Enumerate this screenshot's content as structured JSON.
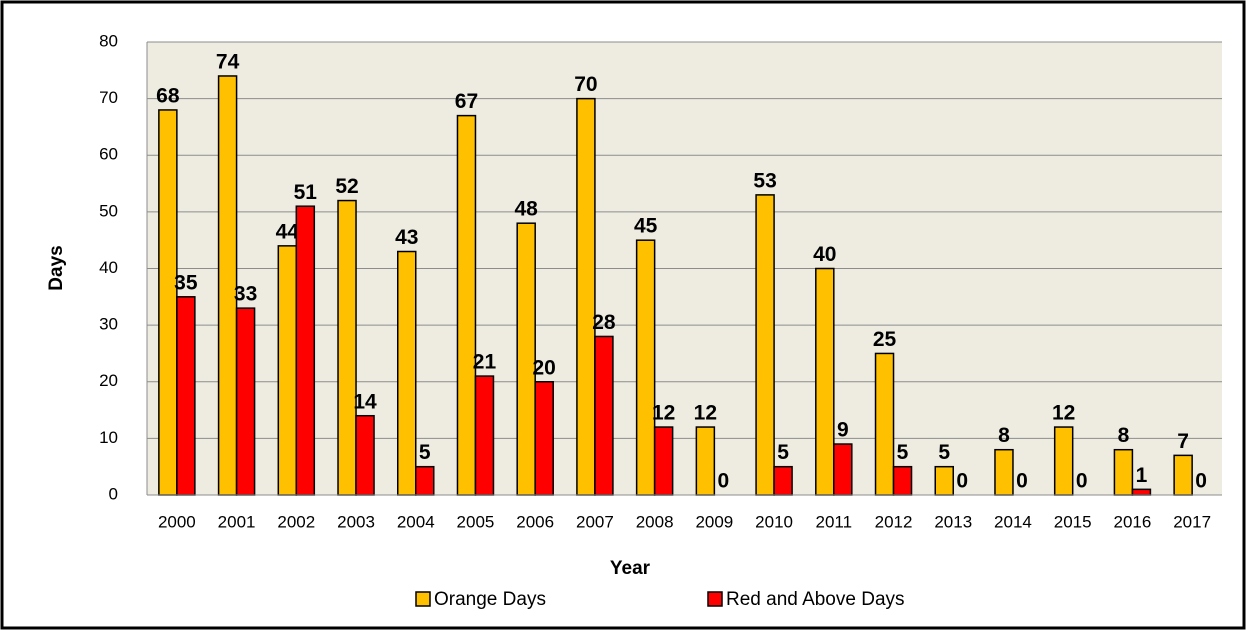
{
  "chart_data": {
    "type": "bar",
    "x_label": "Year",
    "y_label": "Days",
    "categories": [
      "2000",
      "2001",
      "2002",
      "2003",
      "2004",
      "2005",
      "2006",
      "2007",
      "2008",
      "2009",
      "2010",
      "2011",
      "2012",
      "2013",
      "2014",
      "2015",
      "2016",
      "2017"
    ],
    "series": [
      {
        "name": "Orange Days",
        "color": "#ffc000",
        "values": [
          68,
          74,
          44,
          52,
          43,
          67,
          48,
          70,
          45,
          12,
          53,
          40,
          25,
          5,
          8,
          12,
          8,
          7
        ]
      },
      {
        "name": "Red and Above Days",
        "color": "#ff0000",
        "values": [
          35,
          33,
          51,
          14,
          5,
          21,
          20,
          28,
          12,
          0,
          5,
          9,
          5,
          0,
          0,
          0,
          1,
          0
        ]
      }
    ],
    "ylim": [
      0,
      80
    ],
    "yticks": [
      0,
      10,
      20,
      30,
      40,
      50,
      60,
      70,
      80
    ],
    "grid": true,
    "legend": "bottom"
  }
}
